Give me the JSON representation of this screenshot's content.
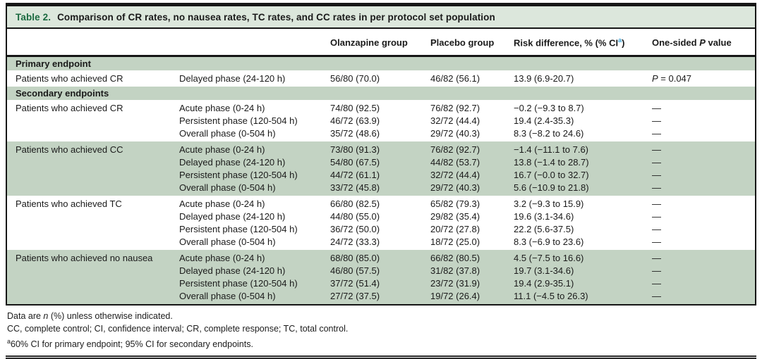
{
  "title": {
    "label": "Table 2.",
    "text": "Comparison of CR rates, no nausea rates, TC rates, and CC rates in per protocol set population"
  },
  "colors": {
    "title_green": "#1b6a40",
    "title_bar_bg": "#dce7dc",
    "row_shade": "#c3d3c3",
    "superscript_blue": "#3ba3d8",
    "border_black": "#161616"
  },
  "table": {
    "col_headers": {
      "olanzapine": "Olanzapine group",
      "placebo": "Placebo group",
      "risk_difference": {
        "text": "Risk difference, % (% CI",
        "superscript": "a",
        "close": ")"
      },
      "one_sided_p": {
        "pre": "One-sided ",
        "italic": "P",
        "post": " value"
      }
    },
    "sections": [
      {
        "header": "Primary endpoint",
        "groups": [
          {
            "endpoint": "Patients who achieved CR",
            "shaded": false,
            "rows": [
              {
                "phase": "Delayed phase (24-120 h)",
                "olanzapine": "56/80 (70.0)",
                "placebo": "46/82 (56.1)",
                "risk_diff": "13.9 (6.9-20.7)",
                "p_value": {
                  "italic": "P",
                  "rest": " = 0.047"
                }
              }
            ]
          }
        ]
      },
      {
        "header": "Secondary endpoints",
        "groups": [
          {
            "endpoint": "Patients who achieved CR",
            "shaded": false,
            "rows": [
              {
                "phase": "Acute phase (0-24 h)",
                "olanzapine": "74/80 (92.5)",
                "placebo": "76/82 (92.7)",
                "risk_diff": "−0.2 (−9.3 to 8.7)",
                "p_value": "—"
              },
              {
                "phase": "Persistent phase (120-504 h)",
                "olanzapine": "46/72 (63.9)",
                "placebo": "32/72 (44.4)",
                "risk_diff": "19.4 (2.4-35.3)",
                "p_value": "—"
              },
              {
                "phase": "Overall phase (0-504 h)",
                "olanzapine": "35/72 (48.6)",
                "placebo": "29/72 (40.3)",
                "risk_diff": "8.3 (−8.2 to 24.6)",
                "p_value": "—"
              }
            ]
          },
          {
            "endpoint": "Patients who achieved CC",
            "shaded": true,
            "rows": [
              {
                "phase": "Acute phase (0-24 h)",
                "olanzapine": "73/80 (91.3)",
                "placebo": "76/82 (92.7)",
                "risk_diff": "−1.4 (−11.1 to 7.6)",
                "p_value": "—"
              },
              {
                "phase": "Delayed phase (24-120 h)",
                "olanzapine": "54/80 (67.5)",
                "placebo": "44/82 (53.7)",
                "risk_diff": "13.8 (−1.4 to 28.7)",
                "p_value": "—"
              },
              {
                "phase": "Persistent phase (120-504 h)",
                "olanzapine": "44/72 (61.1)",
                "placebo": "32/72 (44.4)",
                "risk_diff": "16.7 (−0.0 to 32.7)",
                "p_value": "—"
              },
              {
                "phase": "Overall phase (0-504 h)",
                "olanzapine": "33/72 (45.8)",
                "placebo": "29/72 (40.3)",
                "risk_diff": "5.6 (−10.9 to 21.8)",
                "p_value": "—"
              }
            ]
          },
          {
            "endpoint": "Patients who achieved TC",
            "shaded": false,
            "rows": [
              {
                "phase": "Acute phase (0-24 h)",
                "olanzapine": "66/80 (82.5)",
                "placebo": "65/82 (79.3)",
                "risk_diff": "3.2 (−9.3 to 15.9)",
                "p_value": "—"
              },
              {
                "phase": "Delayed phase (24-120 h)",
                "olanzapine": "44/80 (55.0)",
                "placebo": "29/82 (35.4)",
                "risk_diff": "19.6 (3.1-34.6)",
                "p_value": "—"
              },
              {
                "phase": "Persistent phase (120-504 h)",
                "olanzapine": "36/72 (50.0)",
                "placebo": "20/72 (27.8)",
                "risk_diff": "22.2 (5.6-37.5)",
                "p_value": "—"
              },
              {
                "phase": "Overall phase (0-504 h)",
                "olanzapine": "24/72 (33.3)",
                "placebo": "18/72 (25.0)",
                "risk_diff": "8.3 (−6.9 to 23.6)",
                "p_value": "—"
              }
            ]
          },
          {
            "endpoint": "Patients who achieved no nausea",
            "shaded": true,
            "rows": [
              {
                "phase": "Acute phase (0-24 h)",
                "olanzapine": "68/80 (85.0)",
                "placebo": "66/82 (80.5)",
                "risk_diff": "4.5 (−7.5 to 16.6)",
                "p_value": "—"
              },
              {
                "phase": "Delayed phase (24-120 h)",
                "olanzapine": "46/80 (57.5)",
                "placebo": "31/82 (37.8)",
                "risk_diff": "19.7 (3.1-34.6)",
                "p_value": "—"
              },
              {
                "phase": "Persistent phase (120-504 h)",
                "olanzapine": "37/72 (51.4)",
                "placebo": "23/72 (31.9)",
                "risk_diff": "19.4 (2.9-35.1)",
                "p_value": "—"
              },
              {
                "phase": "Overall phase (0-504 h)",
                "olanzapine": "27/72 (37.5)",
                "placebo": "19/72 (26.4)",
                "risk_diff": "11.1 (−4.5 to 26.3)",
                "p_value": "—"
              }
            ]
          }
        ]
      }
    ]
  },
  "footnotes": {
    "line1": {
      "pre": "Data are ",
      "italic": "n",
      "post": " (%) unless otherwise indicated."
    },
    "line2": "CC, complete control; CI, confidence interval; CR, complete response; TC, total control.",
    "line3": {
      "superscript": "a",
      "text": "60% CI for primary endpoint; 95% CI for secondary endpoints."
    }
  }
}
